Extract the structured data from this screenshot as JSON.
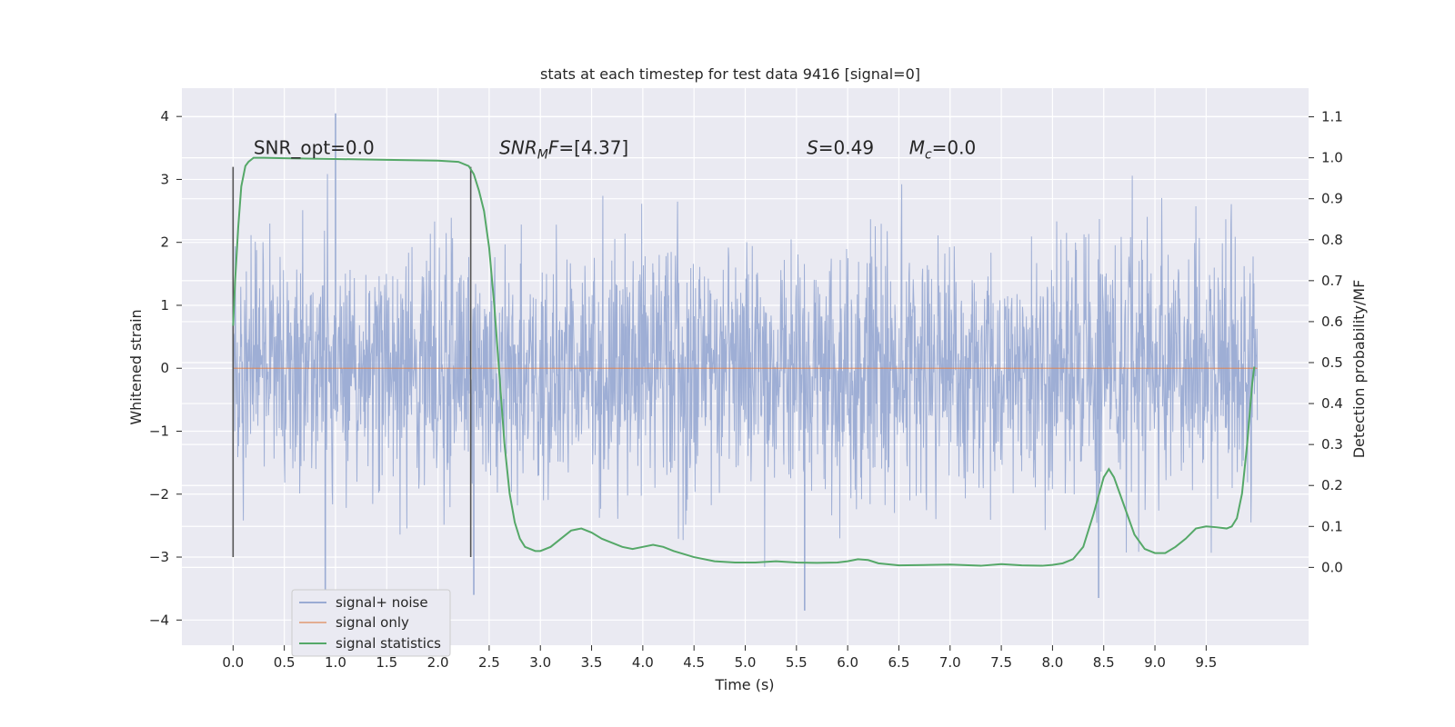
{
  "chart_data": {
    "type": "line",
    "title": "stats at each timestep for test data 9416 [signal=0]",
    "xlabel": "Time (s)",
    "ylabel_left": "Whitened strain",
    "ylabel_right": "Detection probability/MF",
    "xlim": [
      -0.5,
      10.5
    ],
    "ylim_left": [
      -4.4,
      4.45
    ],
    "ylim_right": [
      -0.19,
      1.17
    ],
    "x_ticks": [
      "0.0",
      "0.5",
      "1.0",
      "1.5",
      "2.0",
      "2.5",
      "3.0",
      "3.5",
      "4.0",
      "4.5",
      "5.0",
      "5.5",
      "6.0",
      "6.5",
      "7.0",
      "7.5",
      "8.0",
      "8.5",
      "9.0",
      "9.5"
    ],
    "x_tick_values": [
      0.0,
      0.5,
      1.0,
      1.5,
      2.0,
      2.5,
      3.0,
      3.5,
      4.0,
      4.5,
      5.0,
      5.5,
      6.0,
      6.5,
      7.0,
      7.5,
      8.0,
      8.5,
      9.0,
      9.5
    ],
    "y_left_ticks": [
      "4",
      "3",
      "2",
      "1",
      "0",
      "−1",
      "−2",
      "−3",
      "−4"
    ],
    "y_left_tick_values": [
      4,
      3,
      2,
      1,
      0,
      -1,
      -2,
      -3,
      -4
    ],
    "y_right_ticks": [
      "1.1",
      "1.0",
      "0.9",
      "0.8",
      "0.7",
      "0.6",
      "0.5",
      "0.4",
      "0.3",
      "0.2",
      "0.1",
      "0.0"
    ],
    "y_right_tick_values": [
      1.1,
      1.0,
      0.9,
      0.8,
      0.7,
      0.6,
      0.5,
      0.4,
      0.3,
      0.2,
      0.1,
      0.0
    ],
    "grid": true,
    "legend_position": "lower-left",
    "annotations": {
      "snr_opt": "SNR_opt=0.0",
      "snr_mf_prefix": "SNR",
      "snr_mf_sub": "M",
      "snr_mf_suffix": "F=[4.37]",
      "s_prefix": "S",
      "s_suffix": "=0.49",
      "mc_prefix": "M",
      "mc_sub": "c",
      "mc_suffix": "=0.0"
    },
    "annotation_x": [
      0.2,
      2.6,
      5.6,
      6.6
    ],
    "annotation_y": 1.0,
    "vertical_markers": [
      0.0,
      2.32
    ],
    "vertical_marker_range": [
      -3.0,
      3.2
    ],
    "series": [
      {
        "name": "signal+ noise",
        "color": "#9aabd3",
        "x_range": [
          0.0,
          10.0
        ],
        "typical_band": [
          -1.5,
          1.5
        ],
        "extremes": [
          {
            "x": 1.0,
            "y": 4.05
          },
          {
            "x": 0.9,
            "y": -3.6
          },
          {
            "x": 2.35,
            "y": -3.6
          },
          {
            "x": 5.58,
            "y": -3.85
          },
          {
            "x": 8.45,
            "y": -3.65
          }
        ]
      },
      {
        "name": "signal only",
        "color": "#dd8452",
        "x": [
          0.0,
          10.0
        ],
        "y": [
          0.0,
          0.0
        ]
      },
      {
        "name": "signal statistics",
        "color": "#55a868",
        "axis": "right",
        "x": [
          0.0,
          0.02,
          0.05,
          0.08,
          0.12,
          0.15,
          0.2,
          0.25,
          0.3,
          0.5,
          1.0,
          1.5,
          2.0,
          2.2,
          2.3,
          2.35,
          2.4,
          2.45,
          2.5,
          2.55,
          2.6,
          2.65,
          2.7,
          2.75,
          2.8,
          2.85,
          2.9,
          2.95,
          3.0,
          3.1,
          3.2,
          3.3,
          3.4,
          3.5,
          3.6,
          3.7,
          3.8,
          3.9,
          4.0,
          4.1,
          4.2,
          4.3,
          4.5,
          4.7,
          4.9,
          5.1,
          5.3,
          5.5,
          5.7,
          5.9,
          6.0,
          6.1,
          6.2,
          6.3,
          6.5,
          6.8,
          7.0,
          7.3,
          7.5,
          7.7,
          7.9,
          8.0,
          8.1,
          8.2,
          8.3,
          8.4,
          8.5,
          8.55,
          8.6,
          8.7,
          8.8,
          8.9,
          9.0,
          9.1,
          9.2,
          9.3,
          9.4,
          9.5,
          9.6,
          9.7,
          9.75,
          9.8,
          9.85,
          9.9,
          9.95,
          9.97
        ],
        "y": [
          0.59,
          0.7,
          0.83,
          0.93,
          0.98,
          0.99,
          1.0,
          1.0,
          1.0,
          0.999,
          0.997,
          0.995,
          0.993,
          0.99,
          0.98,
          0.96,
          0.92,
          0.87,
          0.78,
          0.64,
          0.47,
          0.3,
          0.18,
          0.11,
          0.07,
          0.05,
          0.045,
          0.04,
          0.04,
          0.05,
          0.07,
          0.09,
          0.095,
          0.085,
          0.07,
          0.06,
          0.05,
          0.045,
          0.05,
          0.055,
          0.05,
          0.04,
          0.025,
          0.015,
          0.012,
          0.012,
          0.015,
          0.012,
          0.011,
          0.012,
          0.015,
          0.02,
          0.018,
          0.01,
          0.005,
          0.006,
          0.007,
          0.004,
          0.008,
          0.005,
          0.004,
          0.006,
          0.01,
          0.02,
          0.05,
          0.13,
          0.22,
          0.24,
          0.22,
          0.15,
          0.08,
          0.045,
          0.035,
          0.035,
          0.05,
          0.07,
          0.095,
          0.1,
          0.098,
          0.095,
          0.1,
          0.12,
          0.18,
          0.3,
          0.45,
          0.49
        ]
      }
    ]
  }
}
